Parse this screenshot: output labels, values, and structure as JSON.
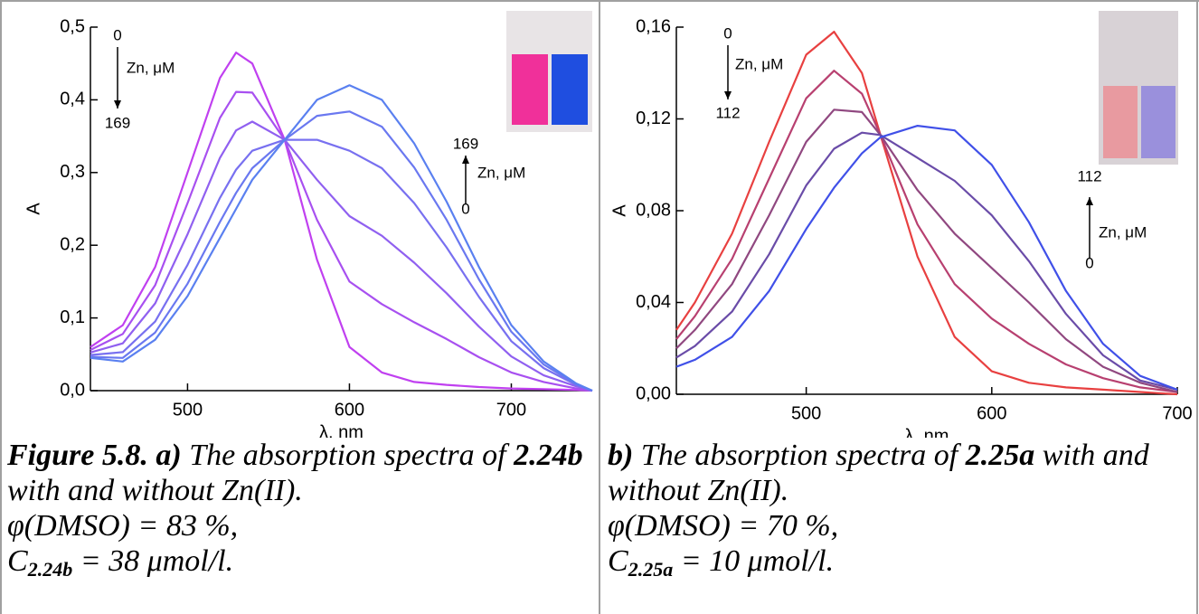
{
  "chart_data": [
    {
      "type": "line",
      "x_label": "λ, nm",
      "y_label": "A",
      "xlim": [
        440,
        750
      ],
      "ylim": [
        0,
        0.5
      ],
      "xticks": [
        500,
        600,
        700
      ],
      "yticks": [
        {
          "value": 0,
          "label": "0,0"
        },
        {
          "value": 0.1,
          "label": "0,1"
        },
        {
          "value": 0.2,
          "label": "0,2"
        },
        {
          "value": 0.3,
          "label": "0,3"
        },
        {
          "value": 0.4,
          "label": "0,4"
        },
        {
          "value": 0.5,
          "label": "0,5"
        }
      ],
      "annotations": [
        "0",
        "Zn, μM",
        "169",
        "169",
        "Zn, μM",
        "0"
      ],
      "x": [
        440,
        460,
        480,
        500,
        520,
        530,
        540,
        560,
        580,
        600,
        620,
        640,
        660,
        680,
        700,
        720,
        740,
        750
      ],
      "series": [
        {
          "color": "#c040f0",
          "values": [
            0.06,
            0.09,
            0.17,
            0.3,
            0.43,
            0.465,
            0.45,
            0.345,
            0.18,
            0.06,
            0.025,
            0.012,
            0.008,
            0.005,
            0.003,
            0.002,
            0.001,
            0
          ]
        },
        {
          "color": "#a850f0",
          "values": [
            0.056,
            0.078,
            0.145,
            0.258,
            0.375,
            0.411,
            0.41,
            0.345,
            0.235,
            0.15,
            0.119,
            0.094,
            0.071,
            0.046,
            0.025,
            0.012,
            0.003,
            0
          ]
        },
        {
          "color": "#9060f0",
          "values": [
            0.0525,
            0.065,
            0.12,
            0.215,
            0.32,
            0.358,
            0.37,
            0.345,
            0.29,
            0.24,
            0.213,
            0.176,
            0.134,
            0.088,
            0.047,
            0.021,
            0.006,
            0
          ]
        },
        {
          "color": "#7870f0",
          "values": [
            0.049,
            0.053,
            0.095,
            0.173,
            0.265,
            0.304,
            0.33,
            0.345,
            0.345,
            0.33,
            0.306,
            0.258,
            0.197,
            0.129,
            0.068,
            0.031,
            0.008,
            0
          ]
        },
        {
          "color": "#6a78f0",
          "values": [
            0.0465,
            0.045,
            0.08,
            0.147,
            0.232,
            0.272,
            0.306,
            0.345,
            0.378,
            0.384,
            0.363,
            0.307,
            0.235,
            0.153,
            0.081,
            0.036,
            0.009,
            0
          ]
        },
        {
          "color": "#5a80f0",
          "values": [
            0.045,
            0.04,
            0.07,
            0.13,
            0.21,
            0.25,
            0.29,
            0.345,
            0.4,
            0.42,
            0.4,
            0.34,
            0.26,
            0.17,
            0.09,
            0.04,
            0.01,
            0
          ]
        }
      ]
    },
    {
      "type": "line",
      "x_label": "λ, nm",
      "y_label": "A",
      "xlim": [
        430,
        700
      ],
      "ylim": [
        0,
        0.16
      ],
      "xticks": [
        500,
        600,
        700
      ],
      "yticks": [
        {
          "value": 0,
          "label": "0,00"
        },
        {
          "value": 0.04,
          "label": "0,04"
        },
        {
          "value": 0.08,
          "label": "0,08"
        },
        {
          "value": 0.12,
          "label": "0,12"
        },
        {
          "value": 0.16,
          "label": "0,16"
        }
      ],
      "annotations": [
        "0",
        "Zn, μM",
        "112",
        "112",
        "Zn, μM",
        "0"
      ],
      "x": [
        430,
        440,
        460,
        480,
        500,
        515,
        530,
        540,
        560,
        580,
        600,
        620,
        640,
        660,
        680,
        700
      ],
      "series": [
        {
          "color": "#e84040",
          "values": [
            0.028,
            0.04,
            0.07,
            0.11,
            0.148,
            0.158,
            0.14,
            0.113,
            0.06,
            0.025,
            0.01,
            0.005,
            0.003,
            0.002,
            0.001,
            0
          ]
        },
        {
          "color": "#b84070",
          "values": [
            0.024,
            0.034,
            0.059,
            0.094,
            0.129,
            0.141,
            0.131,
            0.113,
            0.074,
            0.048,
            0.033,
            0.022,
            0.013,
            0.007,
            0.003,
            0.001
          ]
        },
        {
          "color": "#904880",
          "values": [
            0.02,
            0.028,
            0.048,
            0.078,
            0.11,
            0.124,
            0.123,
            0.113,
            0.089,
            0.07,
            0.055,
            0.04,
            0.024,
            0.012,
            0.005,
            0.001
          ]
        },
        {
          "color": "#6a4ca8",
          "values": [
            0.016,
            0.021,
            0.036,
            0.061,
            0.091,
            0.107,
            0.114,
            0.113,
            0.103,
            0.093,
            0.078,
            0.058,
            0.035,
            0.017,
            0.006,
            0.002
          ]
        },
        {
          "color": "#4050e8",
          "values": [
            0.012,
            0.015,
            0.025,
            0.045,
            0.072,
            0.09,
            0.105,
            0.112,
            0.117,
            0.115,
            0.1,
            0.075,
            0.045,
            0.022,
            0.008,
            0.002
          ]
        }
      ]
    }
  ],
  "captions": [
    [
      "Figure 5.8. a)",
      " The absorption spectra of ",
      "2.24b",
      " with and without Zn(II).",
      "φ(DMSO) = 83 %,",
      "C",
      "2.24b",
      " = 38 μmol/l."
    ],
    [
      "b)",
      " The absorption spectra of ",
      "2.25a",
      " with and without Zn(II).",
      "φ(DMSO) = 70 %,",
      "C",
      "2.25a",
      " = 10 μmol/l."
    ]
  ]
}
